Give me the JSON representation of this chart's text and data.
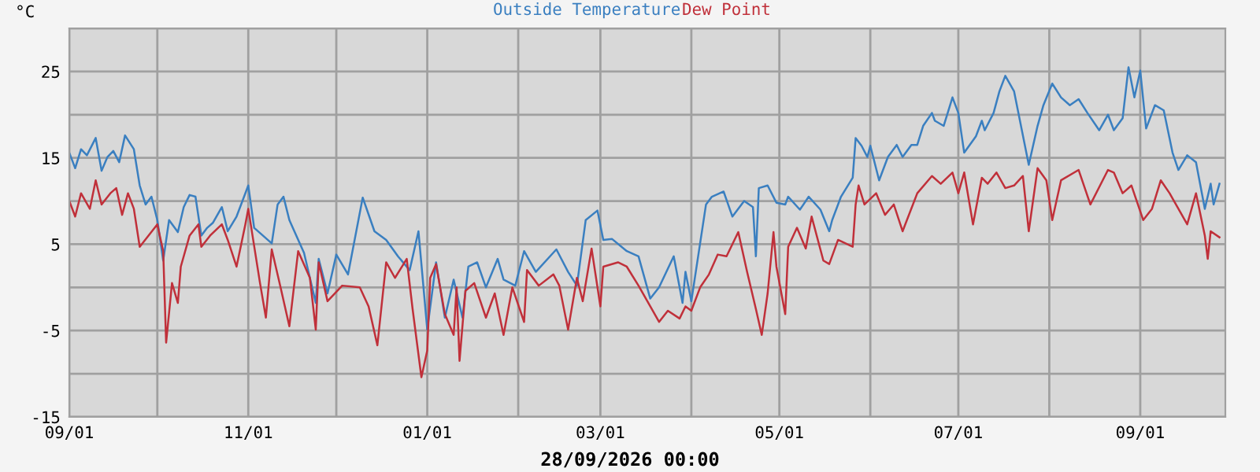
{
  "chart_data": {
    "type": "line",
    "ylabel": "°C",
    "xlabel": "28/09/2026 00:00",
    "legend": "top",
    "grid": true,
    "xlim": [
      "2025-09-01",
      "2026-09-30"
    ],
    "xticks": [
      {
        "value": "2025-09-01",
        "label": "09/01"
      },
      {
        "value": "2025-10-01",
        "label": null
      },
      {
        "value": "2025-11-01",
        "label": "11/01"
      },
      {
        "value": "2025-12-01",
        "label": null
      },
      {
        "value": "2026-01-01",
        "label": "01/01"
      },
      {
        "value": "2026-02-01",
        "label": null
      },
      {
        "value": "2026-03-01",
        "label": "03/01"
      },
      {
        "value": "2026-04-01",
        "label": null
      },
      {
        "value": "2026-05-01",
        "label": "05/01"
      },
      {
        "value": "2026-06-01",
        "label": null
      },
      {
        "value": "2026-07-01",
        "label": "07/01"
      },
      {
        "value": "2026-08-01",
        "label": null
      },
      {
        "value": "2026-09-01",
        "label": "09/01"
      }
    ],
    "ylim": [
      -15,
      30
    ],
    "yticks": [
      -15,
      {
        "value": -10,
        "label": null
      },
      -5,
      {
        "value": 0,
        "label": null
      },
      5,
      {
        "value": 10,
        "label": null
      },
      15,
      {
        "value": 20,
        "label": null
      },
      25,
      {
        "value": 30,
        "label": null
      }
    ],
    "series": [
      {
        "name": "Outside Temperature",
        "color": "#3a7fc0",
        "x": [
          "2025-09-01",
          "2025-09-03",
          "2025-09-05",
          "2025-09-07",
          "2025-09-10",
          "2025-09-12",
          "2025-09-14",
          "2025-09-16",
          "2025-09-18",
          "2025-09-20",
          "2025-09-23",
          "2025-09-25",
          "2025-09-27",
          "2025-09-29",
          "2025-10-01",
          "2025-10-03",
          "2025-10-05",
          "2025-10-08",
          "2025-10-10",
          "2025-10-12",
          "2025-10-14",
          "2025-10-16",
          "2025-10-18",
          "2025-10-20",
          "2025-10-23",
          "2025-10-25",
          "2025-10-28",
          "2025-11-01",
          "2025-11-03",
          "2025-11-09",
          "2025-11-11",
          "2025-11-13",
          "2025-11-15",
          "2025-11-20",
          "2025-11-24",
          "2025-11-25",
          "2025-11-28",
          "2025-12-01",
          "2025-12-05",
          "2025-12-10",
          "2025-12-14",
          "2025-12-18",
          "2025-12-22",
          "2025-12-26",
          "2025-12-29",
          "2026-01-01",
          "2026-01-04",
          "2026-01-07",
          "2026-01-10",
          "2026-01-13",
          "2026-01-15",
          "2026-01-18",
          "2026-01-21",
          "2026-01-25",
          "2026-01-27",
          "2026-01-31",
          "2026-02-03",
          "2026-02-07",
          "2026-02-14",
          "2026-02-18",
          "2026-02-21",
          "2026-02-24",
          "2026-02-28",
          "2026-03-02",
          "2026-03-05",
          "2026-03-10",
          "2026-03-14",
          "2026-03-18",
          "2026-03-21",
          "2026-03-26",
          "2026-03-29",
          "2026-03-30",
          "2026-04-01",
          "2026-04-06",
          "2026-04-08",
          "2026-04-12",
          "2026-04-15",
          "2026-04-19",
          "2026-04-22",
          "2026-04-23",
          "2026-04-24",
          "2026-04-27",
          "2026-04-30",
          "2026-05-03",
          "2026-05-04",
          "2026-05-08",
          "2026-05-11",
          "2026-05-15",
          "2026-05-18",
          "2026-05-19",
          "2026-05-22",
          "2026-05-26",
          "2026-05-27",
          "2026-05-29",
          "2026-05-31",
          "2026-06-01",
          "2026-06-04",
          "2026-06-07",
          "2026-06-10",
          "2026-06-12",
          "2026-06-15",
          "2026-06-17",
          "2026-06-19",
          "2026-06-22",
          "2026-06-23",
          "2026-06-26",
          "2026-06-29",
          "2026-07-01",
          "2026-07-03",
          "2026-07-07",
          "2026-07-09",
          "2026-07-10",
          "2026-07-13",
          "2026-07-15",
          "2026-07-17",
          "2026-07-20",
          "2026-07-22",
          "2026-07-25",
          "2026-07-28",
          "2026-07-30",
          "2026-08-02",
          "2026-08-05",
          "2026-08-08",
          "2026-08-11",
          "2026-08-14",
          "2026-08-18",
          "2026-08-21",
          "2026-08-23",
          "2026-08-26",
          "2026-08-28",
          "2026-08-30",
          "2026-09-01",
          "2026-09-03",
          "2026-09-06",
          "2026-09-09",
          "2026-09-12",
          "2026-09-14",
          "2026-09-17",
          "2026-09-20",
          "2026-09-23",
          "2026-09-25",
          "2026-09-26",
          "2026-09-28"
        ],
        "values": [
          15.6,
          13.8,
          16,
          15.3,
          17.3,
          13.5,
          15.1,
          15.8,
          14.5,
          17.6,
          16,
          11.8,
          9.6,
          10.5,
          7.8,
          3.1,
          7.8,
          6.4,
          9.3,
          10.7,
          10.5,
          6,
          6.9,
          7.5,
          9.3,
          6.5,
          8.2,
          11.8,
          6.9,
          5.1,
          9.6,
          10.5,
          7.8,
          4,
          -1.8,
          3.3,
          -0.7,
          3.8,
          1.5,
          10.4,
          6.5,
          5.5,
          3.6,
          2,
          6.5,
          -4.9,
          2.9,
          -3.5,
          0.9,
          -3.5,
          2.4,
          2.9,
          0,
          3.3,
          0.9,
          0.2,
          4.2,
          1.8,
          4.4,
          1.8,
          0.2,
          7.8,
          8.9,
          5.5,
          5.6,
          4.2,
          3.6,
          -1.3,
          0,
          3.6,
          -1.8,
          1.8,
          -1.6,
          9.6,
          10.5,
          11.1,
          8.2,
          10,
          9.3,
          3.6,
          11.5,
          11.8,
          9.8,
          9.6,
          10.5,
          9,
          10.5,
          9,
          6.5,
          7.8,
          10.5,
          12.7,
          17.3,
          16.4,
          15.1,
          16.4,
          12.4,
          15.1,
          16.5,
          15.1,
          16.5,
          16.5,
          18.7,
          20.2,
          19.3,
          18.7,
          22,
          20.2,
          15.6,
          17.5,
          19.3,
          18.2,
          20.2,
          22.7,
          24.5,
          22.7,
          19.3,
          14.2,
          18.7,
          21.1,
          23.6,
          22,
          21.1,
          21.8,
          20.2,
          18.2,
          20,
          18.2,
          19.6,
          25.5,
          22,
          25.1,
          18.4,
          21.1,
          20.5,
          15.6,
          13.6,
          15.3,
          14.5,
          9.1,
          12,
          9.6,
          12
        ]
      },
      {
        "name": "Dew Point",
        "color": "#c0303a",
        "x": [
          "2025-09-01",
          "2025-09-03",
          "2025-09-05",
          "2025-09-08",
          "2025-09-10",
          "2025-09-12",
          "2025-09-15",
          "2025-09-17",
          "2025-09-19",
          "2025-09-21",
          "2025-09-23",
          "2025-09-25",
          "2025-10-01",
          "2025-10-03",
          "2025-10-04",
          "2025-10-06",
          "2025-10-08",
          "2025-10-09",
          "2025-10-12",
          "2025-10-15",
          "2025-10-16",
          "2025-10-19",
          "2025-10-23",
          "2025-10-25",
          "2025-10-28",
          "2025-10-31",
          "2025-11-01",
          "2025-11-05",
          "2025-11-07",
          "2025-11-09",
          "2025-11-12",
          "2025-11-15",
          "2025-11-18",
          "2025-11-22",
          "2025-11-24",
          "2025-11-25",
          "2025-11-28",
          "2025-12-03",
          "2025-12-09",
          "2025-12-12",
          "2025-12-15",
          "2025-12-18",
          "2025-12-21",
          "2025-12-25",
          "2025-12-27",
          "2025-12-30",
          "2026-01-01",
          "2026-01-02",
          "2026-01-04",
          "2026-01-07",
          "2026-01-10",
          "2026-01-11",
          "2026-01-12",
          "2026-01-14",
          "2026-01-17",
          "2026-01-21",
          "2026-01-24",
          "2026-01-27",
          "2026-01-30",
          "2026-02-03",
          "2026-02-04",
          "2026-02-08",
          "2026-02-13",
          "2026-02-15",
          "2026-02-18",
          "2026-02-21",
          "2026-02-23",
          "2026-02-26",
          "2026-03-01",
          "2026-03-02",
          "2026-03-07",
          "2026-03-10",
          "2026-03-14",
          "2026-03-18",
          "2026-03-21",
          "2026-03-24",
          "2026-03-28",
          "2026-03-30",
          "2026-04-01",
          "2026-04-04",
          "2026-04-07",
          "2026-04-10",
          "2026-04-13",
          "2026-04-17",
          "2026-04-20",
          "2026-04-23",
          "2026-04-25",
          "2026-04-27",
          "2026-04-29",
          "2026-04-30",
          "2026-05-03",
          "2026-05-04",
          "2026-05-07",
          "2026-05-10",
          "2026-05-12",
          "2026-05-16",
          "2026-05-18",
          "2026-05-21",
          "2026-05-26",
          "2026-05-27",
          "2026-05-28",
          "2026-05-30",
          "2026-06-03",
          "2026-06-06",
          "2026-06-09",
          "2026-06-12",
          "2026-06-17",
          "2026-06-22",
          "2026-06-25",
          "2026-06-29",
          "2026-07-01",
          "2026-07-03",
          "2026-07-06",
          "2026-07-09",
          "2026-07-11",
          "2026-07-14",
          "2026-07-17",
          "2026-07-20",
          "2026-07-23",
          "2026-07-25",
          "2026-07-28",
          "2026-07-31",
          "2026-08-02",
          "2026-08-05",
          "2026-08-11",
          "2026-08-15",
          "2026-08-21",
          "2026-08-23",
          "2026-08-26",
          "2026-08-29",
          "2026-09-02",
          "2026-09-05",
          "2026-09-08",
          "2026-09-11",
          "2026-09-14",
          "2026-09-17",
          "2026-09-20",
          "2026-09-23",
          "2026-09-24",
          "2026-09-25",
          "2026-09-28"
        ],
        "values": [
          10,
          8.2,
          10.9,
          9.1,
          12.4,
          9.6,
          10.9,
          11.5,
          8.4,
          10.9,
          9.1,
          4.7,
          7.3,
          4.2,
          -6.4,
          0.5,
          -1.8,
          2.4,
          6,
          7.3,
          4.7,
          6,
          7.3,
          5.5,
          2.4,
          7.3,
          9.1,
          0.5,
          -3.5,
          4.4,
          0,
          -4.5,
          4.2,
          1.1,
          -4.9,
          2.9,
          -1.6,
          0.2,
          0,
          -2.2,
          -6.7,
          2.9,
          1.1,
          3.3,
          -2.5,
          -10.4,
          -7.3,
          1.1,
          2.7,
          -3.1,
          -5.5,
          0,
          -8.5,
          -0.4,
          0.5,
          -3.5,
          -0.7,
          -5.5,
          0,
          -4,
          2,
          0.2,
          1.5,
          0.2,
          -4.9,
          1.1,
          -1.6,
          4.5,
          -2.2,
          2.4,
          2.9,
          2.4,
          0.2,
          -2.2,
          -4,
          -2.7,
          -3.6,
          -2.2,
          -2.7,
          0,
          1.5,
          3.8,
          3.6,
          6.4,
          1.8,
          -2.5,
          -5.5,
          -0.7,
          6.4,
          2.4,
          -3.1,
          4.7,
          6.9,
          4.5,
          8.2,
          3.1,
          2.7,
          5.5,
          4.7,
          9.6,
          11.8,
          9.6,
          10.9,
          8.4,
          9.6,
          6.5,
          10.9,
          12.9,
          12,
          13.3,
          10.9,
          13.3,
          7.3,
          12.7,
          12,
          13.3,
          11.5,
          11.8,
          12.9,
          6.5,
          13.8,
          12.4,
          7.8,
          12.4,
          13.6,
          9.6,
          13.6,
          13.3,
          10.9,
          11.8,
          7.8,
          9.1,
          12.4,
          10.9,
          9.1,
          7.3,
          10.9,
          6,
          3.3,
          6.5,
          5.8
        ]
      }
    ]
  }
}
